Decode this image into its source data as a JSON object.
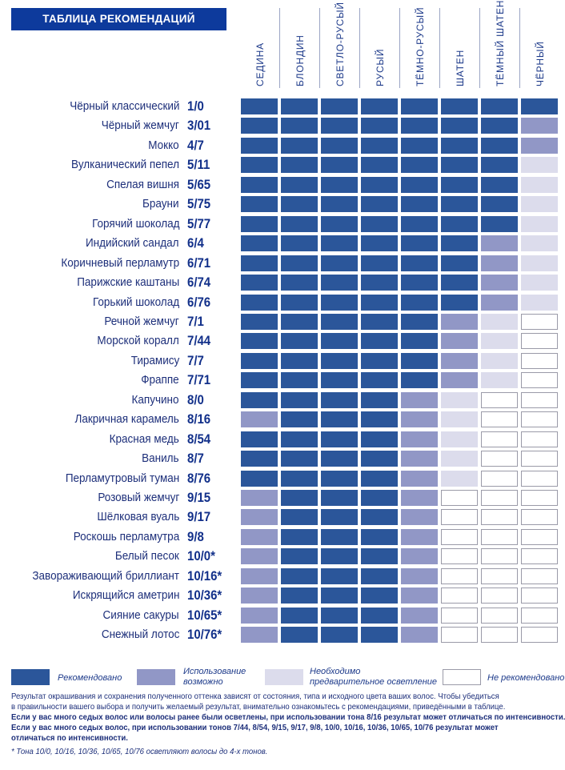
{
  "title": "ТАБЛИЦА РЕКОМЕНДАЦИЙ",
  "colors": {
    "recommended": "#2b569a",
    "possible": "#9197c6",
    "pre_lightening": "#dcdcec",
    "not_recommended": "#ffffff",
    "title_bg": "#0d3a9c"
  },
  "columns": [
    "СЕДИНА",
    "БЛОНДИН",
    "СВЕТЛО-РУСЫЙ",
    "РУСЫЙ",
    "ТЁМНО-РУСЫЙ",
    "ШАТЕН",
    "ТЁМНЫЙ ШАТЕН",
    "ЧЁРНЫЙ"
  ],
  "level_legend": {
    "3": "recommended",
    "2": "possible",
    "1": "pre_lightening",
    "0": "not_recommended"
  },
  "rows": [
    {
      "name": "Чёрный классический",
      "code": "1/0",
      "levels": [
        3,
        3,
        3,
        3,
        3,
        3,
        3,
        3
      ]
    },
    {
      "name": "Чёрный жемчуг",
      "code": "3/01",
      "levels": [
        3,
        3,
        3,
        3,
        3,
        3,
        3,
        2
      ]
    },
    {
      "name": "Мокко",
      "code": "4/7",
      "levels": [
        3,
        3,
        3,
        3,
        3,
        3,
        3,
        2
      ]
    },
    {
      "name": "Вулканический пепел",
      "code": "5/11",
      "levels": [
        3,
        3,
        3,
        3,
        3,
        3,
        3,
        1
      ]
    },
    {
      "name": "Спелая вишня",
      "code": "5/65",
      "levels": [
        3,
        3,
        3,
        3,
        3,
        3,
        3,
        1
      ]
    },
    {
      "name": "Брауни",
      "code": "5/75",
      "levels": [
        3,
        3,
        3,
        3,
        3,
        3,
        3,
        1
      ]
    },
    {
      "name": "Горячий шоколад",
      "code": "5/77",
      "levels": [
        3,
        3,
        3,
        3,
        3,
        3,
        3,
        1
      ]
    },
    {
      "name": "Индийский сандал",
      "code": "6/4",
      "levels": [
        3,
        3,
        3,
        3,
        3,
        3,
        2,
        1
      ]
    },
    {
      "name": "Коричневый перламутр",
      "code": "6/71",
      "levels": [
        3,
        3,
        3,
        3,
        3,
        3,
        2,
        1
      ]
    },
    {
      "name": "Парижские каштаны",
      "code": "6/74",
      "levels": [
        3,
        3,
        3,
        3,
        3,
        3,
        2,
        1
      ]
    },
    {
      "name": "Горький шоколад",
      "code": "6/76",
      "levels": [
        3,
        3,
        3,
        3,
        3,
        3,
        2,
        1
      ]
    },
    {
      "name": "Речной жемчуг",
      "code": "7/1",
      "levels": [
        3,
        3,
        3,
        3,
        3,
        2,
        1,
        0
      ]
    },
    {
      "name": "Морской коралл",
      "code": "7/44",
      "levels": [
        3,
        3,
        3,
        3,
        3,
        2,
        1,
        0
      ]
    },
    {
      "name": "Тирамису",
      "code": "7/7",
      "levels": [
        3,
        3,
        3,
        3,
        3,
        2,
        1,
        0
      ]
    },
    {
      "name": "Фраппе",
      "code": "7/71",
      "levels": [
        3,
        3,
        3,
        3,
        3,
        2,
        1,
        0
      ]
    },
    {
      "name": "Капучино",
      "code": "8/0",
      "levels": [
        3,
        3,
        3,
        3,
        2,
        1,
        0,
        0
      ]
    },
    {
      "name": "Лакричная карамель",
      "code": "8/16",
      "levels": [
        2,
        3,
        3,
        3,
        2,
        1,
        0,
        0
      ]
    },
    {
      "name": "Красная медь",
      "code": "8/54",
      "levels": [
        3,
        3,
        3,
        3,
        2,
        1,
        0,
        0
      ]
    },
    {
      "name": "Ваниль",
      "code": "8/7",
      "levels": [
        3,
        3,
        3,
        3,
        2,
        1,
        0,
        0
      ]
    },
    {
      "name": "Перламутровый туман",
      "code": "8/76",
      "levels": [
        3,
        3,
        3,
        3,
        2,
        1,
        0,
        0
      ]
    },
    {
      "name": "Розовый жемчуг",
      "code": "9/15",
      "levels": [
        2,
        3,
        3,
        3,
        2,
        0,
        0,
        0
      ]
    },
    {
      "name": "Шёлковая вуаль",
      "code": "9/17",
      "levels": [
        2,
        3,
        3,
        3,
        2,
        0,
        0,
        0
      ]
    },
    {
      "name": "Роскошь перламутра",
      "code": "9/8",
      "levels": [
        2,
        3,
        3,
        3,
        2,
        0,
        0,
        0
      ]
    },
    {
      "name": "Белый песок",
      "code": "10/0*",
      "levels": [
        2,
        3,
        3,
        3,
        2,
        0,
        0,
        0
      ]
    },
    {
      "name": "Завораживающий бриллиант",
      "code": "10/16*",
      "levels": [
        2,
        3,
        3,
        3,
        2,
        0,
        0,
        0
      ]
    },
    {
      "name": "Искрящийся аметрин",
      "code": "10/36*",
      "levels": [
        2,
        3,
        3,
        3,
        2,
        0,
        0,
        0
      ]
    },
    {
      "name": "Сияние сакуры",
      "code": "10/65*",
      "levels": [
        2,
        3,
        3,
        3,
        2,
        0,
        0,
        0
      ]
    },
    {
      "name": "Снежный лотос",
      "code": "10/76*",
      "levels": [
        2,
        3,
        3,
        3,
        2,
        0,
        0,
        0
      ]
    }
  ],
  "legend": {
    "recommended": "Рекомендовано",
    "possible_1": "Использование",
    "possible_2": "возможно",
    "pre_1": "Необходимо",
    "pre_2": "предварительное осветление",
    "not_recommended": "Не рекомендовано"
  },
  "notes": {
    "p1a": "Результат окрашивания и сохранения полученного оттенка зависят от состояния, типа и исходного цвета ваших волос. Чтобы убедиться",
    "p1b": "в правильности вашего выбора и получить желаемый результат, внимательно ознакомьтесь с рекомендациями, приведёнными в таблице.",
    "p2": "Если у вас много седых волос или волосы ранее были осветлены, при использовании тона 8/16 результат может отличаться по интенсивности.",
    "p3a": "Если у вас много седых волос, при использовании тонов 7/44, 8/54, 9/15, 9/17, 9/8, 10/0, 10/16, 10/36, 10/65, 10/76 результат может",
    "p3b": "отличаться по интенсивности.",
    "footnote": "* Тона 10/0, 10/16, 10/36, 10/65, 10/76 осветляют волосы до 4-х тонов."
  }
}
